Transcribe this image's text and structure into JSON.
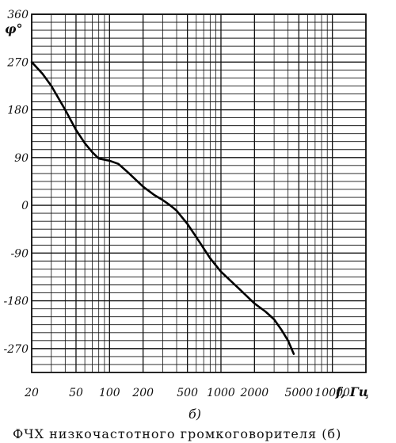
{
  "chart_data": {
    "type": "line",
    "title": "",
    "ylabel": "φ°",
    "xlabel": "f, Гц",
    "x_scale": "log",
    "xlim": [
      20,
      20000
    ],
    "ylim": [
      -315,
      360
    ],
    "y_ticks": [
      360,
      270,
      180,
      90,
      0,
      -90,
      -180,
      -270
    ],
    "y_tick_labels": [
      "360",
      "270",
      "180",
      "90",
      "0",
      "-90",
      "-180",
      "-270"
    ],
    "x_ticks": [
      20,
      50,
      100,
      200,
      500,
      1000,
      2000,
      5000,
      10000
    ],
    "x_tick_labels": [
      "20",
      "50",
      "100",
      "200",
      "500",
      "1000",
      "2000",
      "5000",
      "10000"
    ],
    "grid": true,
    "series": [
      {
        "x": [
          20,
          25,
          30,
          40,
          50,
          60,
          70,
          80,
          100,
          120,
          150,
          200,
          250,
          300,
          350,
          400,
          500,
          600,
          800,
          1000,
          1500,
          2000,
          2500,
          3000,
          3500,
          4000,
          4500
        ],
        "y": [
          270,
          248,
          225,
          180,
          142,
          117,
          100,
          88,
          84,
          78,
          60,
          35,
          20,
          10,
          0,
          -10,
          -35,
          -60,
          -100,
          -125,
          -160,
          -185,
          -200,
          -215,
          -235,
          -255,
          -280
        ]
      }
    ],
    "panel_label": "б)"
  },
  "caption": "ФЧХ низкочастотного громкоговорителя (б)"
}
